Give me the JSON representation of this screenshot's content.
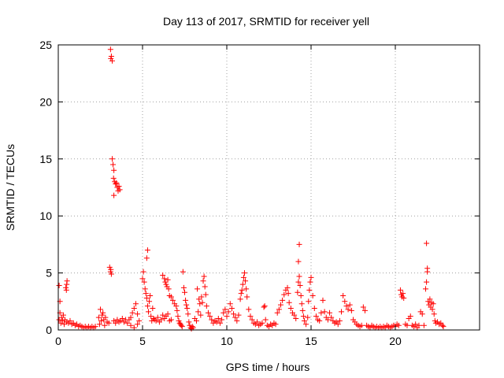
{
  "chart_data": {
    "type": "scatter",
    "title": "Day 113 of 2017, SRMTID for receiver yell",
    "xlabel": "GPS time / hours",
    "ylabel": "SRMTID / TECUs",
    "xlim": [
      0,
      25
    ],
    "ylim": [
      0,
      25
    ],
    "xticks": [
      0,
      5,
      10,
      15,
      20
    ],
    "yticks": [
      0,
      5,
      10,
      15,
      20,
      25
    ],
    "grid": true,
    "marker": "plus",
    "color": "#ff0000",
    "series": [
      {
        "points": [
          [
            0.05,
            0.9
          ],
          [
            0.1,
            1.5
          ],
          [
            0.15,
            0.6
          ],
          [
            0.2,
            1.1
          ],
          [
            0.25,
            0.8
          ],
          [
            0.3,
            1.3
          ],
          [
            0.35,
            0.5
          ],
          [
            0.4,
            0.9
          ],
          [
            0.5,
            0.7
          ],
          [
            0.6,
            0.6
          ],
          [
            0.7,
            0.8
          ],
          [
            0.8,
            0.5
          ],
          [
            0.9,
            0.6
          ],
          [
            1.0,
            0.4
          ],
          [
            1.1,
            0.5
          ],
          [
            1.2,
            0.3
          ],
          [
            1.3,
            0.4
          ],
          [
            1.4,
            0.3
          ],
          [
            1.5,
            0.2
          ],
          [
            1.6,
            0.3
          ],
          [
            1.7,
            0.2
          ],
          [
            1.8,
            0.3
          ],
          [
            1.9,
            0.2
          ],
          [
            2.0,
            0.3
          ],
          [
            2.1,
            0.2
          ],
          [
            2.2,
            0.3
          ],
          [
            0.05,
            3.9
          ],
          [
            0.1,
            2.5
          ],
          [
            0.45,
            3.7
          ],
          [
            0.5,
            4.0
          ],
          [
            0.52,
            4.3
          ],
          [
            0.48,
            3.5
          ],
          [
            2.4,
            1.1
          ],
          [
            2.5,
            1.8
          ],
          [
            2.55,
            0.8
          ],
          [
            2.6,
            1.3
          ],
          [
            2.65,
            1.5
          ],
          [
            2.7,
            0.9
          ],
          [
            2.8,
            1.1
          ],
          [
            2.9,
            0.7
          ],
          [
            3.0,
            0.6
          ],
          [
            2.45,
            0.5
          ],
          [
            2.75,
            0.4
          ],
          [
            3.1,
            24.6
          ],
          [
            3.15,
            24.0
          ],
          [
            3.2,
            23.6
          ],
          [
            3.12,
            23.8
          ],
          [
            3.05,
            5.5
          ],
          [
            3.1,
            5.1
          ],
          [
            3.15,
            4.9
          ],
          [
            3.12,
            5.3
          ],
          [
            3.2,
            15.0
          ],
          [
            3.25,
            14.5
          ],
          [
            3.3,
            14.0
          ],
          [
            3.28,
            13.3
          ],
          [
            3.35,
            13.0
          ],
          [
            3.4,
            12.8
          ],
          [
            3.5,
            12.5
          ],
          [
            3.55,
            12.2
          ],
          [
            3.6,
            12.6
          ],
          [
            3.65,
            12.3
          ],
          [
            3.3,
            11.8
          ],
          [
            3.45,
            12.9
          ],
          [
            3.3,
            0.8
          ],
          [
            3.4,
            0.6
          ],
          [
            3.5,
            0.9
          ],
          [
            3.6,
            0.7
          ],
          [
            3.7,
            0.8
          ],
          [
            3.8,
            1.0
          ],
          [
            3.9,
            0.7
          ],
          [
            4.0,
            0.9
          ],
          [
            4.1,
            0.6
          ],
          [
            4.2,
            0.9
          ],
          [
            4.3,
            1.1
          ],
          [
            4.4,
            1.5
          ],
          [
            4.5,
            1.9
          ],
          [
            4.6,
            2.3
          ],
          [
            4.7,
            1.4
          ],
          [
            4.8,
            0.8
          ],
          [
            4.3,
            0.4
          ],
          [
            4.5,
            0.2
          ],
          [
            4.7,
            0.5
          ],
          [
            5.0,
            4.5
          ],
          [
            5.05,
            5.1
          ],
          [
            5.1,
            4.2
          ],
          [
            5.15,
            3.6
          ],
          [
            5.2,
            3.2
          ],
          [
            5.25,
            2.8
          ],
          [
            5.3,
            2.1
          ],
          [
            5.35,
            1.6
          ],
          [
            5.4,
            2.5
          ],
          [
            5.45,
            3.0
          ],
          [
            5.5,
            1.2
          ],
          [
            5.55,
            0.8
          ],
          [
            5.6,
            1.9
          ],
          [
            5.65,
            1.0
          ],
          [
            5.3,
            7.0
          ],
          [
            5.25,
            6.3
          ],
          [
            5.7,
            0.9
          ],
          [
            5.8,
            0.8
          ],
          [
            5.9,
            1.1
          ],
          [
            6.0,
            0.7
          ],
          [
            6.1,
            0.9
          ],
          [
            6.2,
            1.3
          ],
          [
            6.3,
            1.0
          ],
          [
            6.4,
            1.2
          ],
          [
            6.5,
            1.4
          ],
          [
            6.6,
            0.8
          ],
          [
            6.7,
            0.9
          ],
          [
            6.2,
            4.8
          ],
          [
            6.3,
            4.5
          ],
          [
            6.35,
            4.2
          ],
          [
            6.4,
            4.0
          ],
          [
            6.45,
            3.8
          ],
          [
            6.5,
            4.4
          ],
          [
            6.55,
            3.6
          ],
          [
            6.6,
            3.0
          ],
          [
            6.7,
            2.9
          ],
          [
            6.8,
            2.6
          ],
          [
            6.9,
            2.3
          ],
          [
            7.0,
            2.1
          ],
          [
            7.05,
            1.7
          ],
          [
            7.1,
            1.2
          ],
          [
            7.15,
            0.8
          ],
          [
            7.2,
            0.6
          ],
          [
            7.25,
            0.5
          ],
          [
            7.3,
            0.4
          ],
          [
            7.35,
            0.3
          ],
          [
            7.4,
            5.1
          ],
          [
            7.45,
            3.7
          ],
          [
            7.5,
            3.3
          ],
          [
            7.55,
            2.6
          ],
          [
            7.6,
            2.2
          ],
          [
            7.65,
            1.9
          ],
          [
            7.7,
            1.4
          ],
          [
            7.75,
            0.7
          ],
          [
            7.8,
            0.4
          ],
          [
            7.85,
            0.2
          ],
          [
            7.9,
            0.1
          ],
          [
            7.95,
            0.3
          ],
          [
            8.0,
            0.2
          ],
          [
            8.1,
            1.0
          ],
          [
            8.2,
            0.8
          ],
          [
            8.3,
            1.6
          ],
          [
            8.4,
            2.3
          ],
          [
            8.5,
            2.9
          ],
          [
            8.55,
            2.4
          ],
          [
            8.6,
            4.3
          ],
          [
            8.65,
            4.7
          ],
          [
            8.7,
            3.8
          ],
          [
            8.75,
            3.1
          ],
          [
            8.8,
            2.1
          ],
          [
            8.9,
            1.5
          ],
          [
            9.0,
            1.2
          ],
          [
            9.1,
            0.9
          ],
          [
            8.25,
            3.6
          ],
          [
            8.35,
            2.7
          ],
          [
            8.45,
            1.3
          ],
          [
            9.2,
            0.6
          ],
          [
            9.3,
            0.8
          ],
          [
            9.4,
            0.7
          ],
          [
            9.5,
            1.0
          ],
          [
            9.6,
            0.6
          ],
          [
            9.7,
            0.9
          ],
          [
            9.8,
            1.5
          ],
          [
            9.9,
            1.8
          ],
          [
            10.0,
            1.2
          ],
          [
            10.1,
            1.6
          ],
          [
            10.2,
            2.3
          ],
          [
            10.3,
            1.9
          ],
          [
            10.4,
            1.4
          ],
          [
            10.5,
            1.1
          ],
          [
            10.6,
            0.8
          ],
          [
            10.7,
            1.3
          ],
          [
            10.8,
            2.7
          ],
          [
            10.85,
            3.2
          ],
          [
            10.9,
            3.5
          ],
          [
            10.95,
            4.0
          ],
          [
            11.0,
            4.6
          ],
          [
            11.05,
            5.0
          ],
          [
            11.1,
            4.3
          ],
          [
            11.15,
            3.6
          ],
          [
            11.2,
            2.9
          ],
          [
            11.3,
            1.8
          ],
          [
            11.4,
            1.2
          ],
          [
            11.5,
            0.9
          ],
          [
            11.6,
            0.6
          ],
          [
            11.7,
            0.5
          ],
          [
            11.8,
            0.7
          ],
          [
            11.9,
            0.4
          ],
          [
            12.0,
            0.5
          ],
          [
            12.1,
            0.6
          ],
          [
            12.2,
            2.0
          ],
          [
            12.25,
            2.1
          ],
          [
            12.3,
            0.9
          ],
          [
            12.4,
            0.4
          ],
          [
            12.5,
            0.3
          ],
          [
            12.6,
            0.5
          ],
          [
            12.7,
            0.4
          ],
          [
            12.8,
            0.6
          ],
          [
            12.9,
            0.5
          ],
          [
            13.0,
            1.5
          ],
          [
            13.1,
            1.8
          ],
          [
            13.2,
            2.2
          ],
          [
            13.3,
            2.6
          ],
          [
            13.4,
            3.1
          ],
          [
            13.5,
            3.5
          ],
          [
            13.6,
            3.7
          ],
          [
            13.65,
            3.2
          ],
          [
            13.7,
            2.4
          ],
          [
            13.8,
            1.9
          ],
          [
            13.9,
            1.5
          ],
          [
            14.0,
            1.3
          ],
          [
            14.1,
            1.0
          ],
          [
            14.2,
            3.3
          ],
          [
            14.25,
            4.2
          ],
          [
            14.3,
            4.7
          ],
          [
            14.35,
            3.9
          ],
          [
            14.4,
            3.0
          ],
          [
            14.45,
            2.3
          ],
          [
            14.5,
            1.7
          ],
          [
            14.55,
            1.2
          ],
          [
            14.3,
            7.5
          ],
          [
            14.25,
            6.0
          ],
          [
            14.6,
            0.8
          ],
          [
            14.7,
            0.5
          ],
          [
            14.8,
            1.1
          ],
          [
            14.85,
            2.5
          ],
          [
            14.9,
            3.5
          ],
          [
            14.95,
            4.2
          ],
          [
            15.0,
            4.6
          ],
          [
            15.1,
            3.0
          ],
          [
            15.2,
            1.9
          ],
          [
            15.3,
            1.2
          ],
          [
            15.4,
            0.9
          ],
          [
            15.5,
            0.8
          ],
          [
            15.6,
            1.5
          ],
          [
            15.7,
            2.6
          ],
          [
            15.8,
            1.6
          ],
          [
            15.9,
            1.1
          ],
          [
            16.0,
            0.9
          ],
          [
            16.1,
            1.5
          ],
          [
            16.2,
            1.1
          ],
          [
            16.3,
            0.8
          ],
          [
            16.4,
            0.6
          ],
          [
            16.5,
            0.7
          ],
          [
            16.6,
            0.5
          ],
          [
            16.7,
            0.8
          ],
          [
            16.8,
            1.6
          ],
          [
            16.9,
            3.0
          ],
          [
            17.0,
            2.5
          ],
          [
            17.1,
            2.1
          ],
          [
            17.2,
            1.8
          ],
          [
            17.3,
            2.2
          ],
          [
            17.4,
            1.7
          ],
          [
            17.5,
            0.9
          ],
          [
            17.6,
            0.7
          ],
          [
            17.7,
            0.5
          ],
          [
            17.8,
            0.4
          ],
          [
            17.9,
            0.3
          ],
          [
            18.0,
            0.4
          ],
          [
            18.1,
            2.0
          ],
          [
            18.2,
            1.7
          ],
          [
            18.3,
            0.4
          ],
          [
            18.4,
            0.3
          ],
          [
            18.5,
            0.2
          ],
          [
            18.6,
            0.4
          ],
          [
            18.7,
            0.3
          ],
          [
            18.8,
            0.2
          ],
          [
            18.9,
            0.3
          ],
          [
            19.0,
            0.2
          ],
          [
            19.1,
            0.3
          ],
          [
            19.2,
            0.2
          ],
          [
            19.3,
            0.3
          ],
          [
            19.4,
            0.2
          ],
          [
            19.5,
            0.4
          ],
          [
            19.6,
            0.3
          ],
          [
            19.7,
            0.2
          ],
          [
            19.8,
            0.3
          ],
          [
            19.9,
            0.4
          ],
          [
            20.0,
            0.3
          ],
          [
            20.1,
            0.5
          ],
          [
            20.2,
            0.4
          ],
          [
            20.3,
            3.5
          ],
          [
            20.35,
            3.1
          ],
          [
            20.4,
            2.9
          ],
          [
            20.45,
            3.2
          ],
          [
            20.5,
            2.8
          ],
          [
            20.6,
            0.5
          ],
          [
            20.7,
            0.4
          ],
          [
            20.8,
            1.0
          ],
          [
            20.9,
            1.2
          ],
          [
            21.0,
            0.4
          ],
          [
            21.1,
            0.3
          ],
          [
            21.2,
            0.5
          ],
          [
            21.3,
            0.2
          ],
          [
            21.4,
            0.4
          ],
          [
            21.5,
            1.6
          ],
          [
            21.6,
            1.4
          ],
          [
            21.7,
            0.4
          ],
          [
            21.8,
            3.6
          ],
          [
            21.85,
            4.2
          ],
          [
            21.9,
            5.4
          ],
          [
            21.95,
            2.5
          ],
          [
            22.0,
            2.2
          ],
          [
            22.05,
            2.7
          ],
          [
            22.1,
            2.0
          ],
          [
            22.15,
            2.4
          ],
          [
            22.2,
            1.8
          ],
          [
            22.25,
            2.3
          ],
          [
            22.3,
            1.4
          ],
          [
            21.85,
            7.6
          ],
          [
            21.9,
            5.1
          ],
          [
            22.35,
            0.8
          ],
          [
            22.4,
            0.6
          ],
          [
            22.5,
            0.7
          ],
          [
            22.6,
            0.5
          ],
          [
            22.7,
            0.6
          ],
          [
            22.8,
            0.4
          ],
          [
            22.85,
            0.3
          ]
        ]
      }
    ]
  }
}
